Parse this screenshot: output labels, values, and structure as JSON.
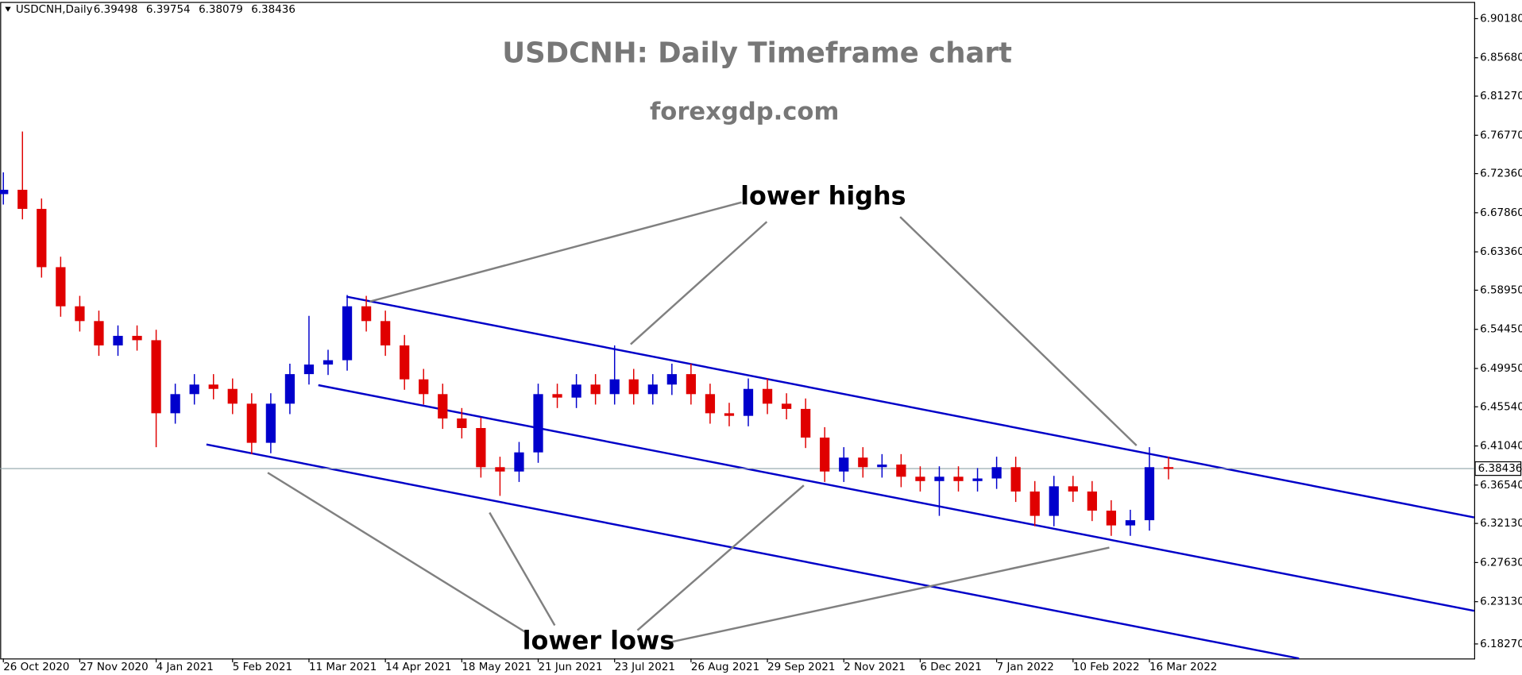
{
  "chart_data": {
    "type": "candlestick",
    "title": "USDCNH: Daily Timeframe chart",
    "subtitle": "forexgdp.com",
    "annotations": [
      "lower highs",
      "lower lows"
    ],
    "header_symbol": "USDCNH,Daily",
    "header_ohlc": [
      6.39498,
      6.39754,
      6.38079,
      6.38436
    ],
    "current_price": 6.38436,
    "up_color": "#0000cc",
    "down_color": "#e00000",
    "x": [
      0,
      6,
      12,
      18,
      24,
      30,
      36,
      42,
      48,
      54,
      60,
      66,
      72,
      78,
      84,
      90,
      96,
      102,
      108,
      114,
      120,
      126,
      132,
      138,
      144,
      150,
      156,
      162,
      168,
      174,
      180,
      186,
      192,
      198,
      204,
      210,
      216,
      222,
      228,
      234,
      240,
      246,
      252,
      258,
      264,
      270,
      276,
      282,
      288,
      294,
      300,
      306,
      312,
      318,
      324,
      330,
      336,
      342,
      348,
      354,
      360,
      366
    ],
    "open": [
      6.7,
      6.705,
      6.683,
      6.616,
      6.571,
      6.554,
      6.526,
      6.537,
      6.532,
      6.448,
      6.47,
      6.481,
      6.476,
      6.459,
      6.414,
      6.459,
      6.493,
      6.504,
      6.509,
      6.571,
      6.554,
      6.526,
      6.487,
      6.47,
      6.442,
      6.431,
      6.386,
      6.381,
      6.403,
      6.47,
      6.466,
      6.481,
      6.47,
      6.487,
      6.47,
      6.481,
      6.493,
      6.47,
      6.448,
      6.445,
      6.476,
      6.459,
      6.453,
      6.42,
      6.381,
      6.397,
      6.386,
      6.389,
      6.375,
      6.37,
      6.375,
      6.37,
      6.373,
      6.386,
      6.358,
      6.33,
      6.364,
      6.358,
      6.336,
      6.319,
      6.325,
      6.386
    ],
    "high": [
      6.725,
      6.772,
      6.695,
      6.628,
      6.583,
      6.566,
      6.549,
      6.549,
      6.544,
      6.482,
      6.493,
      6.493,
      6.488,
      6.471,
      6.471,
      6.505,
      6.56,
      6.521,
      6.584,
      6.583,
      6.566,
      6.538,
      6.499,
      6.482,
      6.454,
      6.443,
      6.398,
      6.415,
      6.482,
      6.482,
      6.493,
      6.493,
      6.526,
      6.499,
      6.493,
      6.505,
      6.505,
      6.482,
      6.46,
      6.488,
      6.488,
      6.471,
      6.465,
      6.432,
      6.409,
      6.409,
      6.401,
      6.401,
      6.387,
      6.387,
      6.387,
      6.385,
      6.398,
      6.398,
      6.37,
      6.376,
      6.376,
      6.37,
      6.348,
      6.337,
      6.409,
      6.398
    ],
    "low": [
      6.688,
      6.671,
      6.604,
      6.559,
      6.542,
      6.514,
      6.514,
      6.52,
      6.409,
      6.436,
      6.458,
      6.464,
      6.447,
      6.401,
      6.402,
      6.447,
      6.481,
      6.492,
      6.497,
      6.542,
      6.514,
      6.475,
      6.458,
      6.43,
      6.419,
      6.374,
      6.353,
      6.369,
      6.391,
      6.454,
      6.454,
      6.458,
      6.458,
      6.458,
      6.458,
      6.469,
      6.458,
      6.436,
      6.433,
      6.433,
      6.447,
      6.441,
      6.408,
      6.369,
      6.369,
      6.374,
      6.374,
      6.363,
      6.358,
      6.33,
      6.358,
      6.358,
      6.361,
      6.346,
      6.318,
      6.318,
      6.346,
      6.324,
      6.307,
      6.307,
      6.313,
      6.372
    ],
    "close": [
      6.705,
      6.683,
      6.616,
      6.571,
      6.554,
      6.526,
      6.537,
      6.532,
      6.448,
      6.47,
      6.481,
      6.476,
      6.459,
      6.414,
      6.459,
      6.493,
      6.504,
      6.509,
      6.571,
      6.554,
      6.526,
      6.487,
      6.47,
      6.442,
      6.431,
      6.386,
      6.381,
      6.403,
      6.47,
      6.466,
      6.481,
      6.47,
      6.487,
      6.47,
      6.481,
      6.493,
      6.47,
      6.448,
      6.445,
      6.476,
      6.459,
      6.453,
      6.42,
      6.381,
      6.397,
      6.386,
      6.389,
      6.375,
      6.37,
      6.375,
      6.37,
      6.373,
      6.386,
      6.358,
      6.33,
      6.364,
      6.358,
      6.336,
      6.319,
      6.325,
      6.386,
      6.384
    ],
    "xlim": [
      -1,
      462
    ],
    "xticks": [
      {
        "value": 0,
        "label": "26 Oct 2020"
      },
      {
        "value": 24,
        "label": "27 Nov 2020"
      },
      {
        "value": 48,
        "label": "4 Jan 2021"
      },
      {
        "value": 72,
        "label": "5 Feb 2021"
      },
      {
        "value": 96,
        "label": "11 Mar 2021"
      },
      {
        "value": 120,
        "label": "14 Apr 2021"
      },
      {
        "value": 144,
        "label": "18 May 2021"
      },
      {
        "value": 168,
        "label": "21 Jun 2021"
      },
      {
        "value": 192,
        "label": "23 Jul 2021"
      },
      {
        "value": 216,
        "label": "26 Aug 2021"
      },
      {
        "value": 240,
        "label": "29 Sep 2021"
      },
      {
        "value": 264,
        "label": "2 Nov 2021"
      },
      {
        "value": 288,
        "label": "6 Dec 2021"
      },
      {
        "value": 312,
        "label": "7 Jan 2022"
      },
      {
        "value": 336,
        "label": "10 Feb 2022"
      },
      {
        "value": 360,
        "label": "16 Mar 2022"
      }
    ],
    "ylim": [
      6.166,
      6.921
    ],
    "yticks": [
      {
        "value": 6.9018,
        "label": "6.90180"
      },
      {
        "value": 6.8568,
        "label": "6.85680"
      },
      {
        "value": 6.8127,
        "label": "6.81270"
      },
      {
        "value": 6.7677,
        "label": "6.76770"
      },
      {
        "value": 6.7236,
        "label": "6.72360"
      },
      {
        "value": 6.6786,
        "label": "6.67860"
      },
      {
        "value": 6.6336,
        "label": "6.63360"
      },
      {
        "value": 6.5895,
        "label": "6.58950"
      },
      {
        "value": 6.5445,
        "label": "6.54450"
      },
      {
        "value": 6.4995,
        "label": "6.49950"
      },
      {
        "value": 6.4554,
        "label": "6.45540"
      },
      {
        "value": 6.4104,
        "label": "6.41040"
      },
      {
        "value": 6.3654,
        "label": "6.36540"
      },
      {
        "value": 6.3213,
        "label": "6.32130"
      },
      {
        "value": 6.2763,
        "label": "6.27630"
      },
      {
        "value": 6.2313,
        "label": "6.23130"
      },
      {
        "value": 6.1827,
        "label": "6.18270"
      }
    ]
  }
}
